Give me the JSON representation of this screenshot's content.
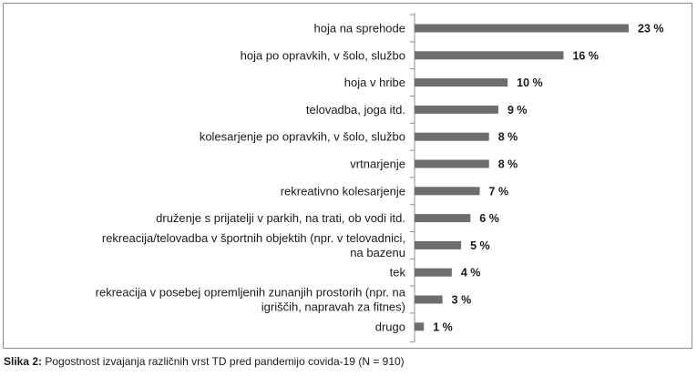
{
  "caption": {
    "label": "Slika 2:",
    "text": " Pogostnost izvajanja različnih vrst TD pred pandemijo covida-19 (N = 910)"
  },
  "chart_data": {
    "type": "bar",
    "orientation": "horizontal",
    "categories": [
      [
        "hoja na sprehode"
      ],
      [
        "hoja po opravkih, v šolo, službo"
      ],
      [
        "hoja v hribe"
      ],
      [
        "telovadba, joga itd."
      ],
      [
        "kolesarjenje po opravkih, v šolo, službo"
      ],
      [
        "vrtnarjenje"
      ],
      [
        "rekreativno kolesarjenje"
      ],
      [
        "druženje s prijatelji v parkih, na trati, ob vodi itd."
      ],
      [
        "rekreacija/telovadba v športnih objektih (npr. v telovadnici,",
        "na bazenu"
      ],
      [
        "tek"
      ],
      [
        "rekreacija v posebej opremljenih zunanjih prostorih (npr. na",
        "igriščih, napravah za fitnes)"
      ],
      [
        "drugo"
      ]
    ],
    "values": [
      23,
      16,
      10,
      9,
      8,
      8,
      7,
      6,
      5,
      4,
      3,
      1
    ],
    "value_labels": [
      "23 %",
      "16 %",
      "10 %",
      "9 %",
      "8 %",
      "8 %",
      "7 %",
      "6 %",
      "5 %",
      "4 %",
      "3 %",
      "1 %"
    ],
    "xlim": [
      0,
      23
    ],
    "grid": false,
    "bar_color": "#6e6e6e"
  }
}
